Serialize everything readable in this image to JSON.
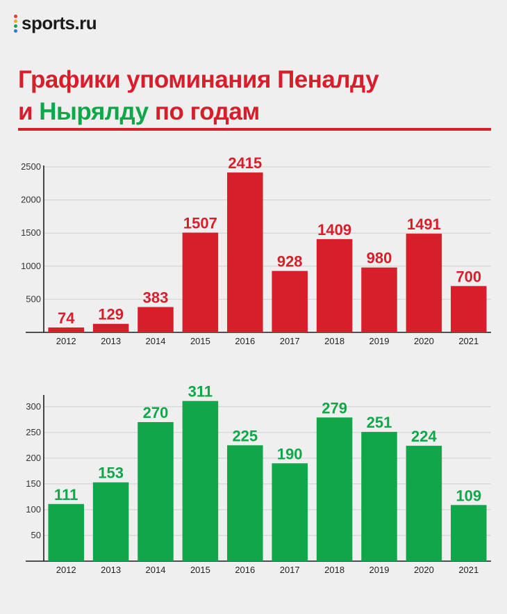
{
  "brand": {
    "logo_text": "sports.ru",
    "dot_colors": [
      "#e23b3b",
      "#f5a623",
      "#10a64a",
      "#2b7bd6",
      "#8e44ad"
    ]
  },
  "header": {
    "title_line1": "Графики упоминания Пеналду",
    "title_line2_prefix": "и",
    "title_line2_green": "Нырялду",
    "title_line2_suffix": "по годам"
  },
  "colors": {
    "red": "#d71f2b",
    "green": "#10a64a"
  },
  "chart_data": [
    {
      "type": "bar",
      "id": "penaldu",
      "title": "",
      "xlabel": "",
      "ylabel": "",
      "categories": [
        "2012",
        "2013",
        "2014",
        "2015",
        "2016",
        "2017",
        "2018",
        "2019",
        "2020",
        "2021"
      ],
      "values": [
        74,
        129,
        383,
        1507,
        2415,
        928,
        1409,
        980,
        1491,
        700
      ],
      "ylim": [
        0,
        2500
      ],
      "yticks": [
        500,
        1000,
        1500,
        2000,
        2500
      ],
      "grid": true,
      "color": "#d71f2b"
    },
    {
      "type": "bar",
      "id": "nyryaldu",
      "title": "",
      "xlabel": "",
      "ylabel": "",
      "categories": [
        "2012",
        "2013",
        "2014",
        "2015",
        "2016",
        "2017",
        "2018",
        "2019",
        "2020",
        "2021"
      ],
      "values": [
        111,
        153,
        270,
        311,
        225,
        190,
        279,
        251,
        224,
        109
      ],
      "ylim": [
        0,
        320
      ],
      "yticks": [
        50,
        100,
        150,
        200,
        250,
        300
      ],
      "grid": true,
      "color": "#10a64a"
    }
  ]
}
